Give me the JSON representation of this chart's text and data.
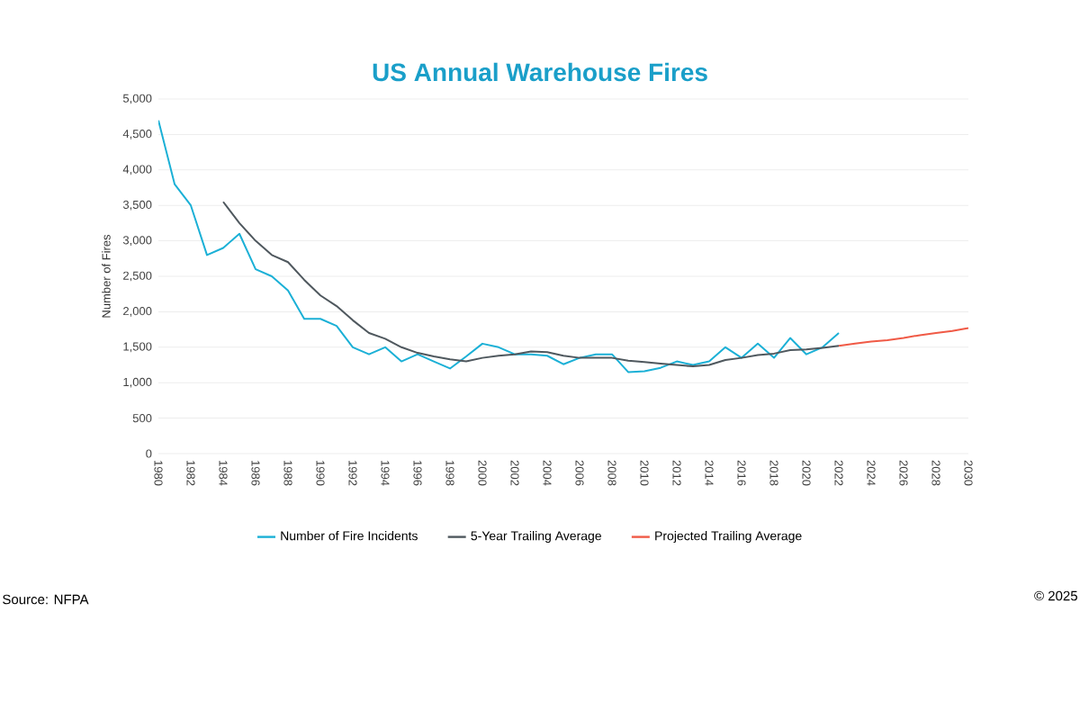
{
  "chart_data": {
    "type": "line",
    "title": "US Annual Warehouse Fires",
    "ylabel": "Number of Fires",
    "xlim": [
      1980,
      2030
    ],
    "xticks": [
      1980,
      1982,
      1984,
      1986,
      1988,
      1990,
      1992,
      1994,
      1996,
      1998,
      2000,
      2002,
      2004,
      2006,
      2008,
      2010,
      2012,
      2014,
      2016,
      2018,
      2020,
      2022,
      2024,
      2026,
      2028,
      2030
    ],
    "ylim": [
      0,
      5000
    ],
    "yticks": [
      0,
      500,
      {
        "value": 1000,
        "label": "1,000"
      },
      {
        "value": 1500,
        "label": "1,500"
      },
      {
        "value": 2000,
        "label": "2,000"
      },
      {
        "value": 2500,
        "label": "2,500"
      },
      {
        "value": 3000,
        "label": "3,000"
      },
      {
        "value": 3500,
        "label": "3,500"
      },
      {
        "value": 4000,
        "label": "4,000"
      },
      {
        "value": 4500,
        "label": "4,500"
      },
      {
        "value": 5000,
        "label": "5,000"
      }
    ],
    "series": [
      {
        "name": "Number of Fire Incidents",
        "color": "#1bb0d6",
        "x": [
          1980,
          1981,
          1982,
          1983,
          1984,
          1985,
          1986,
          1987,
          1988,
          1989,
          1990,
          1991,
          1992,
          1993,
          1994,
          1995,
          1996,
          1997,
          1998,
          1999,
          2000,
          2001,
          2002,
          2003,
          2004,
          2005,
          2006,
          2007,
          2008,
          2009,
          2010,
          2011,
          2012,
          2013,
          2014,
          2015,
          2016,
          2017,
          2018,
          2019,
          2020,
          2021,
          2022
        ],
        "values": [
          4700,
          3800,
          3500,
          2800,
          2900,
          3100,
          2600,
          2500,
          2300,
          1900,
          1900,
          1800,
          1500,
          1400,
          1500,
          1300,
          1400,
          1300,
          1200,
          1370,
          1550,
          1500,
          1400,
          1400,
          1380,
          1260,
          1350,
          1400,
          1400,
          1150,
          1160,
          1210,
          1300,
          1250,
          1300,
          1500,
          1350,
          1550,
          1350,
          1630,
          1400,
          1500,
          1700
        ]
      },
      {
        "name": "5-Year Trailing Average",
        "color": "#4f585e",
        "x": [
          1984,
          1985,
          1986,
          1987,
          1988,
          1989,
          1990,
          1991,
          1992,
          1993,
          1994,
          1995,
          1996,
          1997,
          1998,
          1999,
          2000,
          2001,
          2002,
          2003,
          2004,
          2005,
          2006,
          2007,
          2008,
          2009,
          2010,
          2011,
          2012,
          2013,
          2014,
          2015,
          2016,
          2017,
          2018,
          2019,
          2020,
          2021,
          2022
        ],
        "values": [
          3550,
          3250,
          3000,
          2800,
          2700,
          2450,
          2230,
          2080,
          1880,
          1700,
          1620,
          1500,
          1420,
          1370,
          1330,
          1300,
          1350,
          1380,
          1400,
          1440,
          1430,
          1380,
          1350,
          1350,
          1350,
          1310,
          1290,
          1270,
          1250,
          1230,
          1250,
          1320,
          1350,
          1390,
          1410,
          1460,
          1470,
          1490,
          1520
        ]
      },
      {
        "name": "Projected Trailing Average",
        "color": "#f05a46",
        "x": [
          2022,
          2023,
          2024,
          2025,
          2026,
          2027,
          2028,
          2029,
          2030
        ],
        "values": [
          1520,
          1550,
          1580,
          1600,
          1630,
          1670,
          1700,
          1730,
          1770
        ]
      }
    ],
    "grid": "y",
    "legend": "bottom",
    "marker": "none",
    "line_style": "solid",
    "annotations": [
      "Source: NFPA",
      "© 2025"
    ]
  }
}
